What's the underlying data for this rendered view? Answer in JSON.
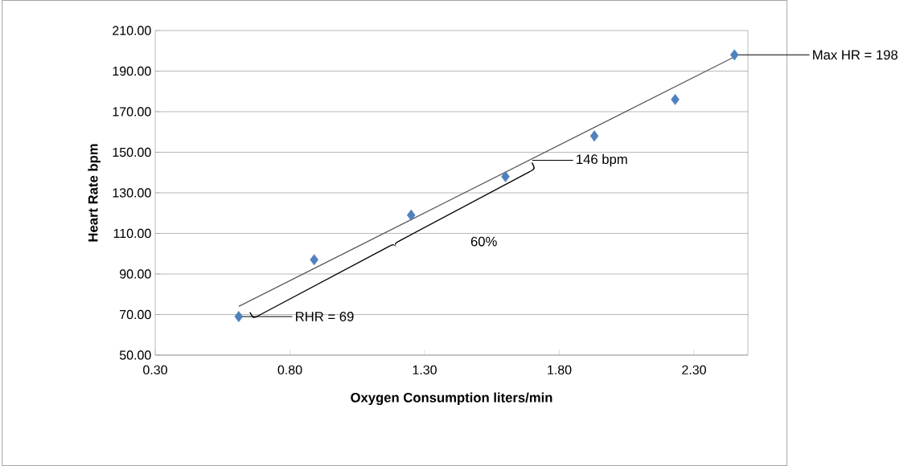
{
  "chart_data": {
    "type": "scatter",
    "xlabel": "Oxygen Consumption liters/min",
    "ylabel": "Heart Rate bpm",
    "series": [
      {
        "type": "scatter",
        "color": "#4f81bd",
        "marker": "diamond",
        "x": [
          0.61,
          0.89,
          1.25,
          1.6,
          1.93,
          2.23,
          2.45
        ],
        "values": [
          69,
          97,
          119,
          138,
          158,
          176,
          198
        ]
      },
      {
        "type": "line",
        "color": "#595959",
        "marker": "none",
        "x": [
          0.61,
          2.45
        ],
        "values": [
          74,
          197
        ]
      }
    ],
    "xlim": [
      0.3,
      2.5
    ],
    "xticks": [
      {
        "value": 0.3,
        "label": "0.30"
      },
      {
        "value": 0.8,
        "label": "0.80"
      },
      {
        "value": 1.3,
        "label": "1.30"
      },
      {
        "value": 1.8,
        "label": "1.80"
      },
      {
        "value": 2.3,
        "label": "2.30"
      }
    ],
    "ylim": [
      50,
      210
    ],
    "yticks": [
      {
        "value": 50,
        "label": "50.00"
      },
      {
        "value": 70,
        "label": "70.00"
      },
      {
        "value": 90,
        "label": "90.00"
      },
      {
        "value": 110,
        "label": "110.00"
      },
      {
        "value": 130,
        "label": "130.00"
      },
      {
        "value": 150,
        "label": "150.00"
      },
      {
        "value": 170,
        "label": "170.00"
      },
      {
        "value": 190,
        "label": "190.00"
      },
      {
        "value": 210,
        "label": "210.00"
      }
    ],
    "grid": "y",
    "annotations": [
      {
        "text": "RHR = 69",
        "x": 0.61,
        "y": 69
      },
      {
        "text": "146 bpm",
        "x": 1.7,
        "y": 146
      },
      "60%",
      {
        "text": "Max HR = 198",
        "x": 2.45,
        "y": 198
      }
    ]
  }
}
